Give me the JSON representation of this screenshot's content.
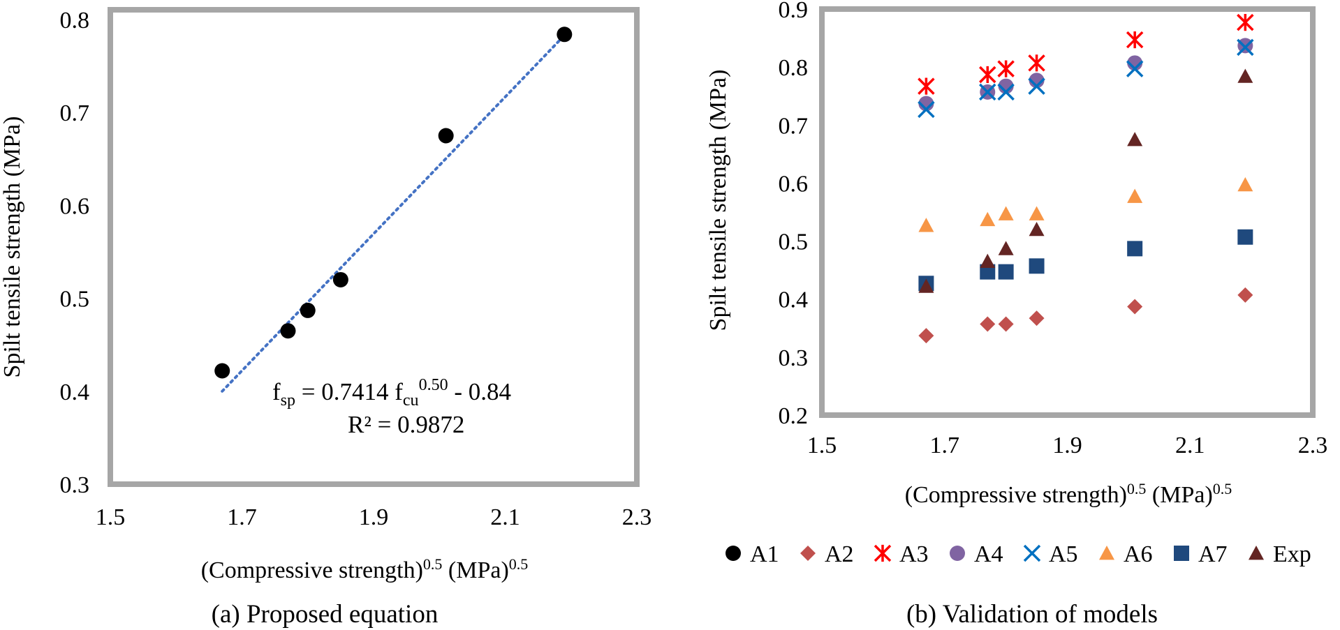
{
  "chart_data": [
    {
      "id": "a",
      "type": "scatter",
      "caption": "(a)  Proposed equation",
      "xlabel": "(Compressive strength)",
      "xlabel_sup": "0.5",
      "xlabel_unit": " (MPa)",
      "xlabel_unit_sup": "0.5",
      "ylabel": "Spilt tensile strength (MPa)",
      "xlim": [
        1.5,
        2.3
      ],
      "ylim": [
        0.3,
        0.8
      ],
      "xticks": [
        "1.5",
        "1.7",
        "1.9",
        "2.1",
        "2.3"
      ],
      "yticks": [
        "0.3",
        "0.4",
        "0.5",
        "0.6",
        "0.7",
        "0.8"
      ],
      "grid": false,
      "series": [
        {
          "name": "A1",
          "marker": "circle",
          "color": "#000000",
          "x": [
            1.67,
            1.77,
            1.8,
            1.85,
            2.01,
            2.19
          ],
          "y": [
            0.422,
            0.465,
            0.487,
            0.52,
            0.675,
            0.784
          ]
        }
      ],
      "trendline": {
        "x": [
          1.67,
          2.19
        ],
        "y": [
          0.4,
          0.783
        ],
        "color": "#4472C4",
        "style": "dotted"
      },
      "equation": {
        "lhs": "f",
        "lhs_sub": "sp",
        "mid": " = 0.7414 f",
        "mid_sub": "cu",
        "mid_sup": "0.50",
        "rhs": " - 0.84",
        "r2": "R² = 0.9872"
      }
    },
    {
      "id": "b",
      "type": "scatter",
      "caption": "(b)  Validation of models",
      "xlabel": "(Compressive strength)",
      "xlabel_sup": "0.5",
      "xlabel_unit": " (MPa)",
      "xlabel_unit_sup": "0.5",
      "ylabel": "Spilt tensile strength (MPa)",
      "xlim": [
        1.5,
        2.3
      ],
      "ylim": [
        0.2,
        0.9
      ],
      "xticks": [
        "1.5",
        "1.7",
        "1.9",
        "2.1",
        "2.3"
      ],
      "yticks": [
        "0.2",
        "0.3",
        "0.4",
        "0.5",
        "0.6",
        "0.7",
        "0.8",
        "0.9"
      ],
      "grid": false,
      "x": [
        1.67,
        1.77,
        1.8,
        1.85,
        2.01,
        2.19
      ],
      "series": [
        {
          "name": "A2",
          "marker": "diamond",
          "color": "#C0504D",
          "values": [
            0.337,
            0.357,
            0.357,
            0.367,
            0.387,
            0.407
          ]
        },
        {
          "name": "A3",
          "marker": "star",
          "color": "#FF0000",
          "values": [
            0.767,
            0.787,
            0.797,
            0.807,
            0.847,
            0.877
          ]
        },
        {
          "name": "A4",
          "marker": "circle",
          "color": "#8064A2",
          "values": [
            0.737,
            0.757,
            0.767,
            0.777,
            0.807,
            0.837
          ]
        },
        {
          "name": "A5",
          "marker": "x",
          "color": "#0070C0",
          "values": [
            0.727,
            0.757,
            0.757,
            0.767,
            0.797,
            0.834
          ]
        },
        {
          "name": "A6",
          "marker": "triangle",
          "color": "#F79646",
          "values": [
            0.527,
            0.537,
            0.547,
            0.547,
            0.577,
            0.597
          ]
        },
        {
          "name": "A7",
          "marker": "square",
          "color": "#1F497D",
          "values": [
            0.427,
            0.447,
            0.447,
            0.457,
            0.487,
            0.507
          ]
        },
        {
          "name": "Exp",
          "marker": "triangle",
          "color": "#632523",
          "values": [
            0.422,
            0.465,
            0.487,
            0.52,
            0.675,
            0.784
          ]
        }
      ]
    }
  ],
  "legend": {
    "placement": "bottom",
    "items": [
      {
        "label": "A1",
        "marker": "circle",
        "color": "#000000"
      },
      {
        "label": "A2",
        "marker": "diamond",
        "color": "#C0504D"
      },
      {
        "label": "A3",
        "marker": "star",
        "color": "#FF0000"
      },
      {
        "label": "A4",
        "marker": "circle",
        "color": "#8064A2"
      },
      {
        "label": "A5",
        "marker": "x",
        "color": "#0070C0"
      },
      {
        "label": "A6",
        "marker": "triangle",
        "color": "#F79646"
      },
      {
        "label": "A7",
        "marker": "square",
        "color": "#1F497D"
      },
      {
        "label": "Exp",
        "marker": "triangle",
        "color": "#632523"
      }
    ]
  },
  "frame_color": "#A6A6A6"
}
